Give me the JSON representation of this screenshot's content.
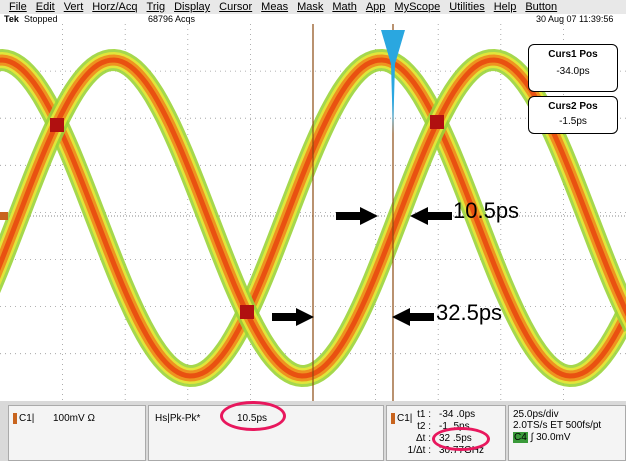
{
  "menu": [
    "File",
    "Edit",
    "Vert",
    "Horz/Acq",
    "Trig",
    "Display",
    "Cursor",
    "Meas",
    "Mask",
    "Math",
    "App",
    "MyScope",
    "Utilities",
    "Help",
    "Button"
  ],
  "status": {
    "brand": "Tek",
    "state": "Stopped",
    "acqs": "68796 Acqs",
    "datetime": "30 Aug 07 11:39:56"
  },
  "cursors": [
    {
      "label": "Curs1 Pos",
      "value": "-34.0ps"
    },
    {
      "label": "Curs2 Pos",
      "value": "-1.5ps"
    }
  ],
  "annotations": [
    "10.5ps",
    "32.5ps"
  ],
  "readouts": {
    "channel": {
      "name": "C1|",
      "scale": "100mV Ω"
    },
    "measurement": {
      "name": "Hs|Pk-Pk*",
      "value": "10.5ps"
    },
    "cursor": {
      "name": "C1|",
      "rows": [
        [
          "t1 :",
          "-34 .0ps"
        ],
        [
          "t2 :",
          "-1 .5ps"
        ],
        [
          "Δt :",
          "32 .5ps"
        ],
        [
          "1/Δt :",
          "30.77GHz"
        ]
      ]
    },
    "timebase": {
      "scale": "25.0ps/div",
      "rate": "2.0TS/s ET 500fs/pt",
      "trigger_channel": "C4",
      "trigger_level": "∫ 30.0mV"
    }
  }
}
